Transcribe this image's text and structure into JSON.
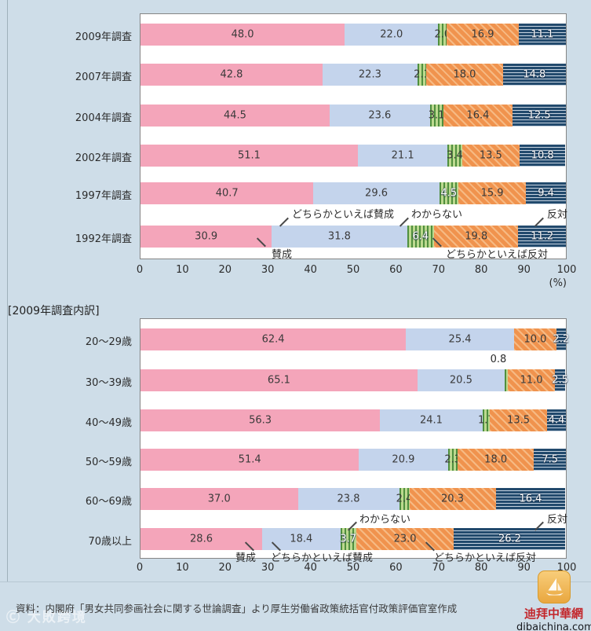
{
  "legend": {
    "agree": "賛成",
    "somewhat_agree": "どちらかといえば賛成",
    "dont_know": "わからない",
    "somewhat_oppose": "どちらかといえば反対",
    "oppose": "反対"
  },
  "axis": {
    "ticks": [
      0,
      10,
      20,
      30,
      40,
      50,
      60,
      70,
      80,
      90,
      100
    ],
    "unit": "(%)"
  },
  "chart_data": [
    {
      "type": "bar",
      "stacked": true,
      "orientation": "horizontal",
      "title": "",
      "xlim": [
        0,
        100
      ],
      "unit": "(%)",
      "ticks": [
        0,
        10,
        20,
        30,
        40,
        50,
        60,
        70,
        80,
        90,
        100
      ],
      "categories": [
        "2009年調査",
        "2007年調査",
        "2004年調査",
        "2002年調査",
        "1997年調査",
        "1992年調査"
      ],
      "series": [
        {
          "name": "賛成",
          "key": "agree",
          "color": "#f4a5ba",
          "pattern": "solid",
          "values": [
            48.0,
            42.8,
            44.5,
            51.1,
            40.7,
            30.9
          ]
        },
        {
          "name": "どちらかといえば賛成",
          "key": "somewhat-agree",
          "color": "#c4d4ec",
          "pattern": "solid",
          "values": [
            22.0,
            22.3,
            23.6,
            21.1,
            29.6,
            31.8
          ]
        },
        {
          "name": "わからない",
          "key": "dont-know",
          "color": "#4f8f3e",
          "pattern": "vertical-stripes",
          "values": [
            2.0,
            2.1,
            3.1,
            3.4,
            4.5,
            6.4
          ]
        },
        {
          "name": "どちらかといえば反対",
          "key": "somewhat-oppose",
          "color": "#f0934e",
          "pattern": "diagonal-stripes",
          "values": [
            16.9,
            18.0,
            16.4,
            13.5,
            15.9,
            19.8
          ]
        },
        {
          "name": "反対",
          "key": "oppose",
          "color": "#224a6d",
          "pattern": "horizontal-stripes",
          "values": [
            11.1,
            14.8,
            12.5,
            10.8,
            9.4,
            11.2
          ]
        }
      ]
    },
    {
      "type": "bar",
      "stacked": true,
      "orientation": "horizontal",
      "title": "[2009年調査内訳]",
      "xlim": [
        0,
        100
      ],
      "unit": "(%)",
      "ticks": [
        0,
        10,
        20,
        30,
        40,
        50,
        60,
        70,
        80,
        90,
        100
      ],
      "categories": [
        "20〜29歳",
        "30〜39歳",
        "40〜49歳",
        "50〜59歳",
        "60〜69歳",
        "70歳以上"
      ],
      "series": [
        {
          "name": "賛成",
          "key": "agree",
          "color": "#f4a5ba",
          "pattern": "solid",
          "values": [
            62.4,
            65.1,
            56.3,
            51.4,
            37.0,
            28.6
          ]
        },
        {
          "name": "どちらかといえば賛成",
          "key": "somewhat-agree",
          "color": "#c4d4ec",
          "pattern": "solid",
          "values": [
            25.4,
            20.5,
            24.1,
            20.9,
            23.8,
            18.4
          ]
        },
        {
          "name": "わからない",
          "key": "dont-know",
          "color": "#4f8f3e",
          "pattern": "vertical-stripes",
          "values": [
            0,
            0.8,
            1.7,
            2.3,
            2.4,
            3.7
          ]
        },
        {
          "name": "どちらかといえば反対",
          "key": "somewhat-oppose",
          "color": "#f0934e",
          "pattern": "diagonal-stripes",
          "values": [
            10.0,
            11.0,
            13.5,
            18.0,
            20.3,
            23.0
          ]
        },
        {
          "name": "反対",
          "key": "oppose",
          "color": "#224a6d",
          "pattern": "horizontal-stripes",
          "values": [
            2.2,
            2.5,
            4.4,
            7.5,
            16.4,
            26.2
          ]
        }
      ]
    }
  ],
  "label_display_overrides": [
    {
      "chart": 1,
      "row": 1,
      "series": 2,
      "mode": "annotation_above",
      "label": "0.8"
    }
  ],
  "annotations": {
    "age_30_39_value": "0.8"
  },
  "footer": {
    "source": "資料：内閣府「男女共同参画社会に関する世論調査」より厚生労働省政策統括官付政策評価官室作成"
  },
  "watermarks": {
    "left": {
      "text": "Ⓒ 大敗跨境"
    },
    "right": {
      "icon": "sailboat-seal-icon",
      "brand": "迪拜中華網",
      "domain": "dibaichina.com"
    }
  },
  "colors": {
    "pink": "#f4a5ba",
    "light_blue": "#c4d4ec",
    "green_dark": "#4f8f3e",
    "green_light": "#bcd98f",
    "orange": "#f0934e",
    "orange_light": "#f6ba84",
    "navy": "#224a6d",
    "navy_stripe_light": "#c6d3e0",
    "background": "#cedde8"
  }
}
